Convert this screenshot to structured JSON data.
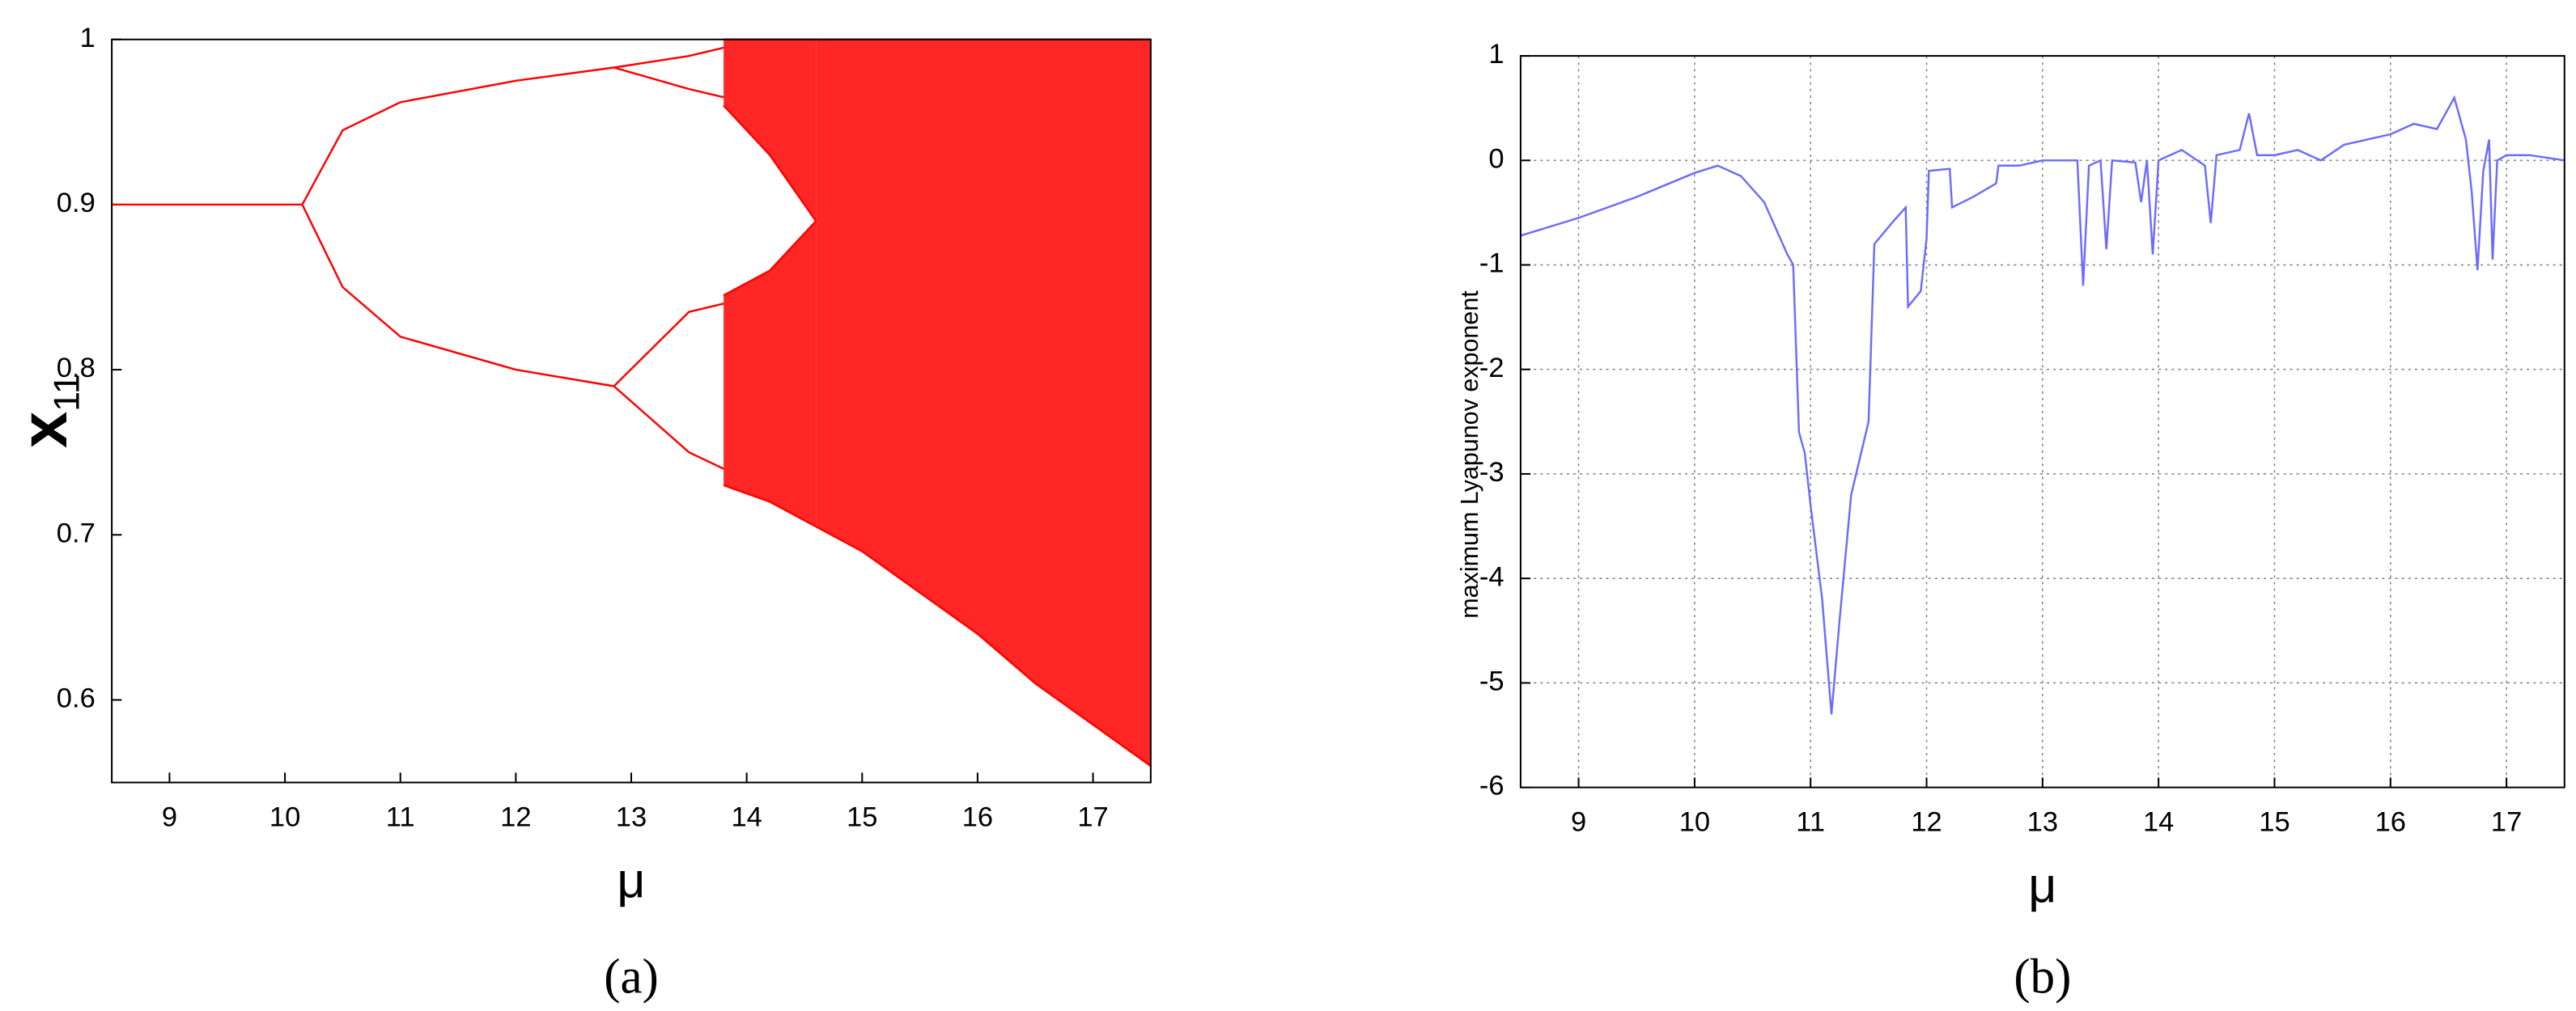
{
  "chart_data": [
    {
      "type": "bifurcation",
      "caption": "(a)",
      "x_label": "μ",
      "y_label": "x",
      "y_label_subscript": "11",
      "color": "#ff0000",
      "grid": false,
      "xlim": [
        8.5,
        17.5
      ],
      "xticks": [
        9,
        10,
        11,
        12,
        13,
        14,
        15,
        16,
        17
      ],
      "ylim": [
        0.55,
        1
      ],
      "yticks": [
        0.6,
        0.7,
        0.8,
        0.9,
        1
      ],
      "series": [
        {
          "x": [
            8.5,
            10.15
          ],
          "values": [
            0.9,
            0.9
          ]
        },
        {
          "x": [
            10.15,
            10.5,
            11,
            12,
            12.85
          ],
          "values": [
            0.9,
            0.945,
            0.962,
            0.975,
            0.983
          ]
        },
        {
          "x": [
            10.15,
            10.5,
            11,
            12,
            12.85
          ],
          "values": [
            0.9,
            0.85,
            0.82,
            0.8,
            0.79
          ]
        },
        {
          "x": [
            12.85,
            13.5,
            13.8
          ],
          "values": [
            0.983,
            0.99,
            0.995
          ]
        },
        {
          "x": [
            12.85,
            13.5,
            13.8
          ],
          "values": [
            0.983,
            0.97,
            0.965
          ]
        },
        {
          "x": [
            12.85,
            13.5,
            13.8
          ],
          "values": [
            0.79,
            0.835,
            0.84
          ]
        },
        {
          "x": [
            12.85,
            13.5,
            13.8
          ],
          "values": [
            0.79,
            0.75,
            0.74
          ]
        }
      ],
      "bands": [
        {
          "x": [
            13.8,
            14.2,
            14.6
          ],
          "lower": [
            0.96,
            0.93,
            0.89
          ],
          "upper": [
            1,
            1,
            1
          ]
        },
        {
          "x": [
            13.8,
            14.2,
            14.6
          ],
          "lower": [
            0.73,
            0.72,
            0.705
          ],
          "upper": [
            0.845,
            0.86,
            0.89
          ]
        },
        {
          "x": [
            14.6,
            15,
            15.5,
            16,
            16.5,
            17,
            17.5
          ],
          "lower": [
            0.705,
            0.69,
            0.665,
            0.64,
            0.61,
            0.585,
            0.56
          ],
          "upper": [
            1,
            1,
            1,
            1,
            1,
            1,
            1
          ]
        }
      ]
    },
    {
      "type": "line",
      "caption": "(b)",
      "x_label": "μ",
      "y_label": "maximum Lyapunov exponent",
      "color": "#6b6bff",
      "grid": true,
      "xlim": [
        8.5,
        17.5
      ],
      "xticks": [
        9,
        10,
        11,
        12,
        13,
        14,
        15,
        16,
        17
      ],
      "ylim": [
        -6,
        1
      ],
      "yticks": [
        -6,
        -5,
        -4,
        -3,
        -2,
        -1,
        0,
        1
      ],
      "x": [
        8.5,
        9,
        9.5,
        10,
        10.2,
        10.4,
        10.6,
        10.8,
        10.85,
        10.9,
        10.95,
        11.0,
        11.1,
        11.18,
        11.25,
        11.35,
        11.5,
        11.55,
        11.7,
        11.82,
        11.84,
        11.95,
        12.0,
        12.02,
        12.2,
        12.22,
        12.4,
        12.6,
        12.62,
        12.8,
        13.0,
        13.3,
        13.35,
        13.4,
        13.5,
        13.55,
        13.6,
        13.8,
        13.85,
        13.9,
        13.95,
        14.0,
        14.2,
        14.4,
        14.45,
        14.5,
        14.7,
        14.78,
        14.85,
        15.0,
        15.2,
        15.4,
        15.6,
        15.8,
        16.0,
        16.2,
        16.4,
        16.55,
        16.65,
        16.7,
        16.75,
        16.8,
        16.85,
        16.88,
        16.92,
        17.0,
        17.2,
        17.5
      ],
      "values": [
        -0.72,
        -0.55,
        -0.35,
        -0.12,
        -0.05,
        -0.15,
        -0.4,
        -0.9,
        -1.0,
        -2.6,
        -2.8,
        -3.3,
        -4.2,
        -5.3,
        -4.4,
        -3.2,
        -2.5,
        -0.8,
        -0.6,
        -0.45,
        -1.4,
        -1.25,
        -0.75,
        -0.1,
        -0.08,
        -0.45,
        -0.35,
        -0.22,
        -0.05,
        -0.05,
        0,
        0,
        -1.2,
        -0.05,
        0,
        -0.85,
        0,
        -0.02,
        -0.4,
        0,
        -0.9,
        0,
        0.1,
        -0.05,
        -0.6,
        0.05,
        0.1,
        0.45,
        0.05,
        0.05,
        0.1,
        0.0,
        0.15,
        0.2,
        0.25,
        0.35,
        0.3,
        0.6,
        0.2,
        -0.3,
        -1.05,
        -0.1,
        0.2,
        -0.95,
        0.0,
        0.05,
        0.05,
        0.0
      ]
    }
  ]
}
